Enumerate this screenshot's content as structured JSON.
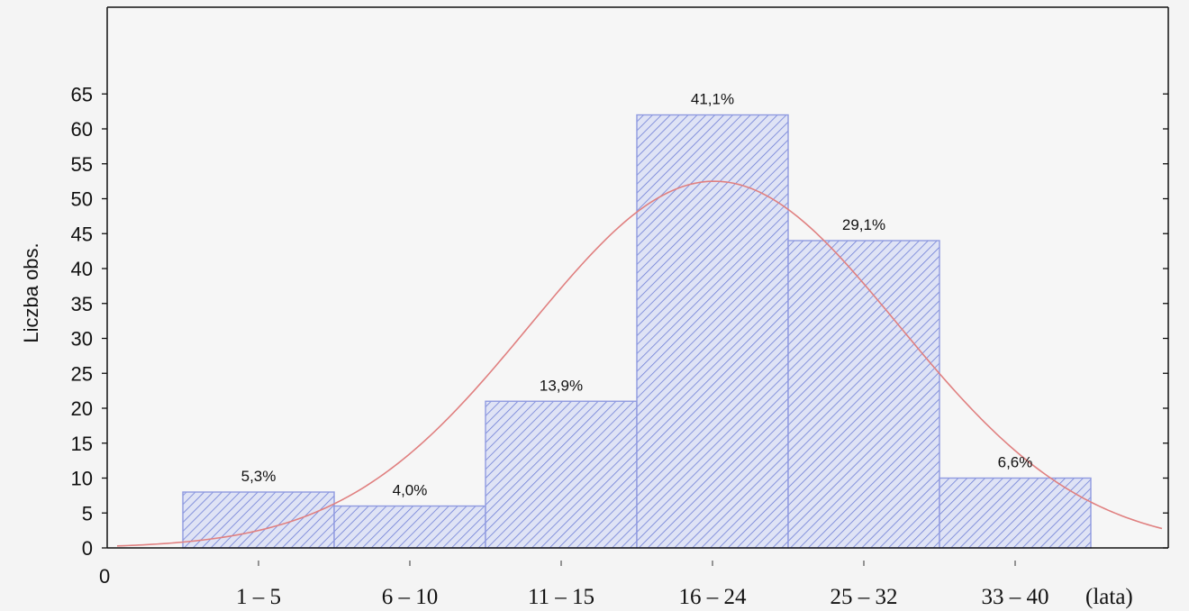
{
  "chart_data": {
    "type": "bar",
    "categories": [
      "1 – 5",
      "6 – 10",
      "11 – 15",
      "16 – 24",
      "25 – 32",
      "33 – 40"
    ],
    "values": [
      8,
      6,
      21,
      62,
      44,
      10
    ],
    "data_labels": [
      "5,3%",
      "4,0%",
      "13,9%",
      "41,1%",
      "29,1%",
      "6,6%"
    ],
    "ylabel": "Liczba obs.",
    "xlabel": "(lata)",
    "x_origin_label": "0",
    "ylim": [
      0,
      65
    ],
    "yticks": [
      0,
      5,
      10,
      15,
      20,
      25,
      30,
      35,
      40,
      45,
      50,
      55,
      60,
      65
    ],
    "grid": false,
    "overlay": {
      "type": "normal-curve",
      "peak_value": 52.5,
      "color": "#e08080"
    },
    "colors": {
      "bar_fill": "#dfe3f5",
      "bar_hatch": "#6f7fd6",
      "bar_edge": "#8f9ae0",
      "curve": "#e08080"
    }
  }
}
